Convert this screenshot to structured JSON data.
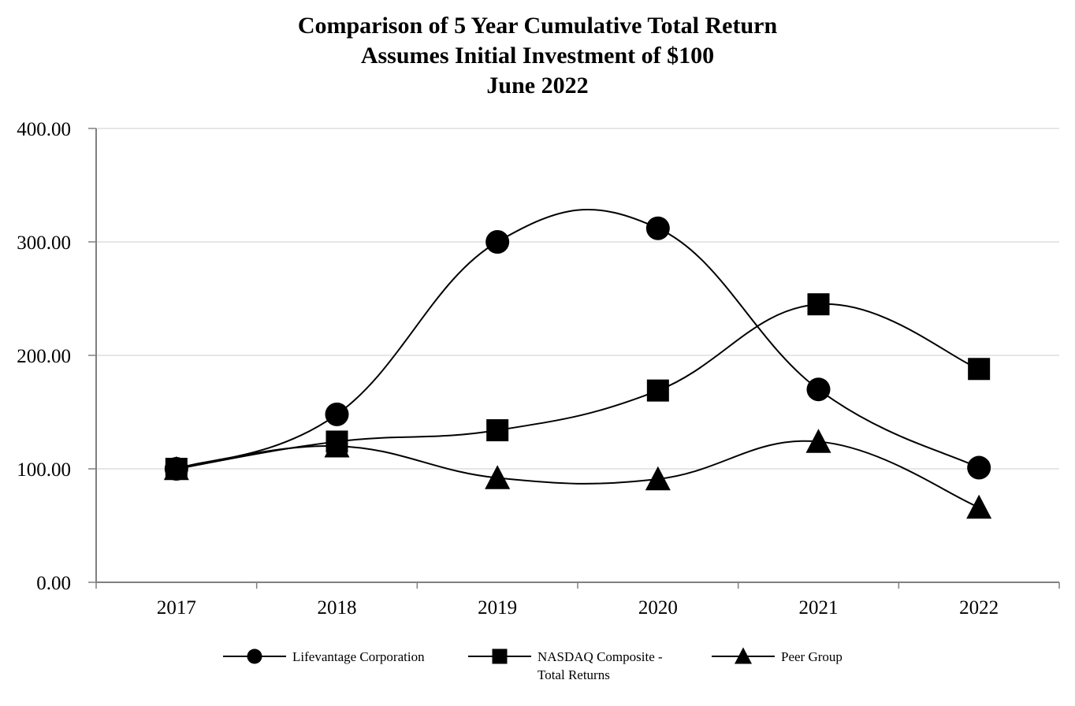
{
  "chart_data": {
    "type": "line",
    "title": "Comparison of 5 Year Cumulative Total Return",
    "subtitle": "Assumes Initial Investment of $100",
    "subtitle2": "June 2022",
    "xlabel": "",
    "ylabel": "",
    "categories": [
      "2017",
      "2018",
      "2019",
      "2020",
      "2021",
      "2022"
    ],
    "y_ticks": [
      "0.00",
      "100.00",
      "200.00",
      "300.00",
      "400.00"
    ],
    "ylim": [
      0,
      400
    ],
    "grid": true,
    "smooth": true,
    "legend_position": "bottom",
    "colors": {
      "line": "#000000",
      "grid": "#e6e6e6",
      "axis": "#808080"
    },
    "series": [
      {
        "name": "Lifevantage Corporation",
        "name_lines": [
          "Lifevantage Corporation"
        ],
        "marker": "circle",
        "values": [
          100,
          148,
          300,
          312,
          170,
          101
        ]
      },
      {
        "name": "NASDAQ Composite - Total Returns",
        "name_lines": [
          "NASDAQ Composite -",
          "Total Returns"
        ],
        "marker": "square",
        "values": [
          100,
          124,
          134,
          169,
          245,
          188
        ]
      },
      {
        "name": "Peer Group",
        "name_lines": [
          "Peer Group"
        ],
        "marker": "triangle",
        "values": [
          100,
          120,
          92,
          91,
          124,
          66
        ]
      }
    ]
  }
}
